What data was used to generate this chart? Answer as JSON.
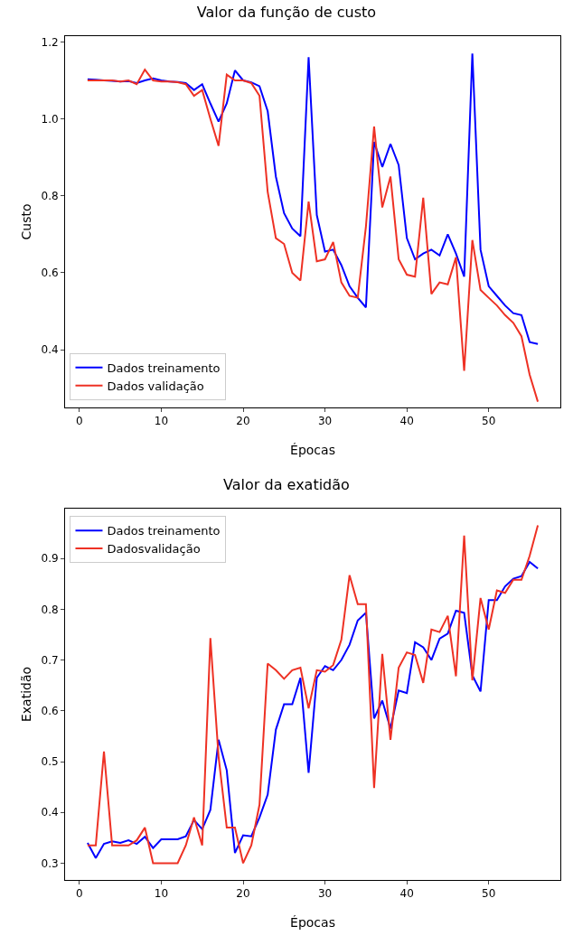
{
  "chart_data": [
    {
      "type": "line",
      "title": "Valor da função de custo",
      "xlabel": "Épocas",
      "ylabel": "Custo",
      "x": [
        1,
        2,
        3,
        4,
        5,
        6,
        7,
        8,
        9,
        10,
        11,
        12,
        13,
        14,
        15,
        16,
        17,
        18,
        19,
        20,
        21,
        22,
        23,
        24,
        25,
        26,
        27,
        28,
        29,
        30,
        31,
        32,
        33,
        34,
        35,
        36,
        37,
        38,
        39,
        40,
        41,
        42,
        43,
        44,
        45,
        46,
        47,
        48,
        49,
        50,
        51,
        52,
        53,
        54,
        55,
        56
      ],
      "series": [
        {
          "name": "Dados treinamento",
          "color": "#0000ff",
          "values": [
            1.103,
            1.102,
            1.1,
            1.099,
            1.097,
            1.098,
            1.093,
            1.1,
            1.105,
            1.1,
            1.097,
            1.096,
            1.093,
            1.075,
            1.09,
            1.04,
            0.993,
            1.04,
            1.126,
            1.1,
            1.095,
            1.085,
            1.02,
            0.85,
            0.755,
            0.715,
            0.695,
            1.16,
            0.75,
            0.655,
            0.66,
            0.62,
            0.565,
            0.535,
            0.51,
            0.94,
            0.875,
            0.935,
            0.88,
            0.69,
            0.635,
            0.65,
            0.66,
            0.645,
            0.7,
            0.65,
            0.59,
            1.17,
            0.66,
            0.565,
            0.54,
            0.515,
            0.495,
            0.49,
            0.42,
            0.415
          ]
        },
        {
          "name": "Dados validação",
          "color": "#ee3124",
          "values": [
            1.1,
            1.1,
            1.1,
            1.1,
            1.097,
            1.1,
            1.09,
            1.128,
            1.1,
            1.097,
            1.097,
            1.095,
            1.09,
            1.06,
            1.075,
            1.0,
            0.93,
            1.115,
            1.1,
            1.1,
            1.093,
            1.06,
            0.81,
            0.69,
            0.675,
            0.6,
            0.58,
            0.785,
            0.63,
            0.635,
            0.68,
            0.575,
            0.54,
            0.535,
            0.72,
            0.98,
            0.77,
            0.85,
            0.635,
            0.595,
            0.59,
            0.795,
            0.545,
            0.575,
            0.57,
            0.64,
            0.345,
            0.685,
            0.555,
            0.535,
            0.515,
            0.49,
            0.47,
            0.435,
            0.335,
            0.265
          ]
        }
      ],
      "xlim": [
        -1.75,
        58.75
      ],
      "xticks": [
        0,
        10,
        20,
        30,
        40,
        50
      ],
      "ylim": [
        0.25,
        1.215
      ],
      "yticks": [
        0.4,
        0.6,
        0.8,
        {
          "value": 1.0,
          "label": "1.0"
        },
        1.2
      ],
      "grid": false,
      "legend": "bottom left",
      "line_style": "solid"
    },
    {
      "type": "line",
      "title": "Valor da exatidão",
      "xlabel": "Épocas",
      "ylabel": "Exatidão",
      "x": [
        1,
        2,
        3,
        4,
        5,
        6,
        7,
        8,
        9,
        10,
        11,
        12,
        13,
        14,
        15,
        16,
        17,
        18,
        19,
        20,
        21,
        22,
        23,
        24,
        25,
        26,
        27,
        28,
        29,
        30,
        31,
        32,
        33,
        34,
        35,
        36,
        37,
        38,
        39,
        40,
        41,
        42,
        43,
        44,
        45,
        46,
        47,
        48,
        49,
        50,
        51,
        52,
        53,
        54,
        55,
        56
      ],
      "series": [
        {
          "name": "Dados treinamento",
          "color": "#0000ff",
          "values": [
            0.34,
            0.31,
            0.338,
            0.343,
            0.34,
            0.345,
            0.338,
            0.352,
            0.33,
            0.347,
            0.347,
            0.347,
            0.353,
            0.385,
            0.367,
            0.405,
            0.543,
            0.483,
            0.32,
            0.355,
            0.353,
            0.39,
            0.435,
            0.563,
            0.613,
            0.613,
            0.665,
            0.478,
            0.665,
            0.688,
            0.68,
            0.7,
            0.73,
            0.778,
            0.793,
            0.585,
            0.62,
            0.565,
            0.64,
            0.635,
            0.735,
            0.725,
            0.7,
            0.742,
            0.752,
            0.797,
            0.793,
            0.67,
            0.638,
            0.818,
            0.818,
            0.845,
            0.86,
            0.865,
            0.893,
            0.88
          ]
        },
        {
          "name": "Dadosvalidação",
          "color": "#ee3124",
          "values": [
            0.335,
            0.335,
            0.52,
            0.335,
            0.335,
            0.335,
            0.345,
            0.37,
            0.3,
            0.3,
            0.3,
            0.3,
            0.335,
            0.39,
            0.335,
            0.743,
            0.51,
            0.37,
            0.37,
            0.3,
            0.335,
            0.415,
            0.693,
            0.68,
            0.663,
            0.68,
            0.685,
            0.605,
            0.68,
            0.677,
            0.69,
            0.74,
            0.867,
            0.81,
            0.81,
            0.448,
            0.712,
            0.543,
            0.685,
            0.715,
            0.71,
            0.655,
            0.76,
            0.755,
            0.787,
            0.668,
            0.945,
            0.66,
            0.822,
            0.76,
            0.837,
            0.832,
            0.858,
            0.858,
            0.905,
            0.965
          ]
        }
      ],
      "xlim": [
        -1.75,
        58.75
      ],
      "xticks": [
        0,
        10,
        20,
        30,
        40,
        50
      ],
      "ylim": [
        0.267,
        0.998
      ],
      "yticks": [
        0.3,
        0.4,
        0.5,
        0.6,
        0.7,
        0.8,
        0.9
      ],
      "grid": false,
      "legend": "top left",
      "line_style": "solid"
    }
  ]
}
